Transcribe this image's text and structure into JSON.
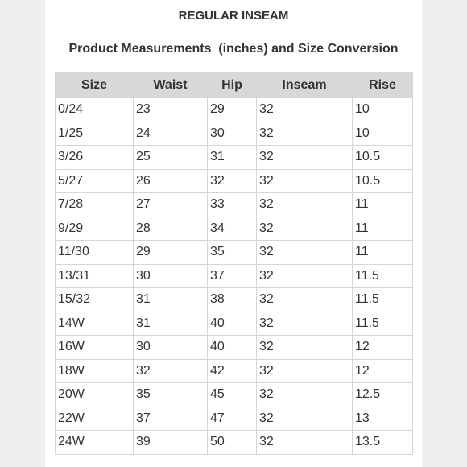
{
  "title": "REGULAR INSEAM",
  "subtitle": "Product Measurements  (inches) and Size Conversion",
  "table": {
    "headers": [
      "Size",
      "Waist",
      "Hip",
      "Inseam",
      "Rise"
    ],
    "rows": [
      [
        "0/24",
        "23",
        "29",
        "32",
        "10"
      ],
      [
        "1/25",
        "24",
        "30",
        "32",
        "10"
      ],
      [
        "3/26",
        "25",
        "31",
        "32",
        "10.5"
      ],
      [
        "5/27",
        "26",
        "32",
        "32",
        "10.5"
      ],
      [
        "7/28",
        "27",
        "33",
        "32",
        "11"
      ],
      [
        "9/29",
        "28",
        "34",
        "32",
        "11"
      ],
      [
        "11/30",
        "29",
        "35",
        "32",
        "11"
      ],
      [
        "13/31",
        "30",
        "37",
        "32",
        "11.5"
      ],
      [
        "15/32",
        "31",
        "38",
        "32",
        "11.5"
      ],
      [
        "14W",
        "31",
        "40",
        "32",
        "11.5"
      ],
      [
        "16W",
        "30",
        "40",
        "32",
        "12"
      ],
      [
        "18W",
        "32",
        "42",
        "32",
        "12"
      ],
      [
        "20W",
        "35",
        "45",
        "32",
        "12.5"
      ],
      [
        "22W",
        "37",
        "47",
        "32",
        "13"
      ],
      [
        "24W",
        "39",
        "50",
        "32",
        "13.5"
      ]
    ]
  }
}
